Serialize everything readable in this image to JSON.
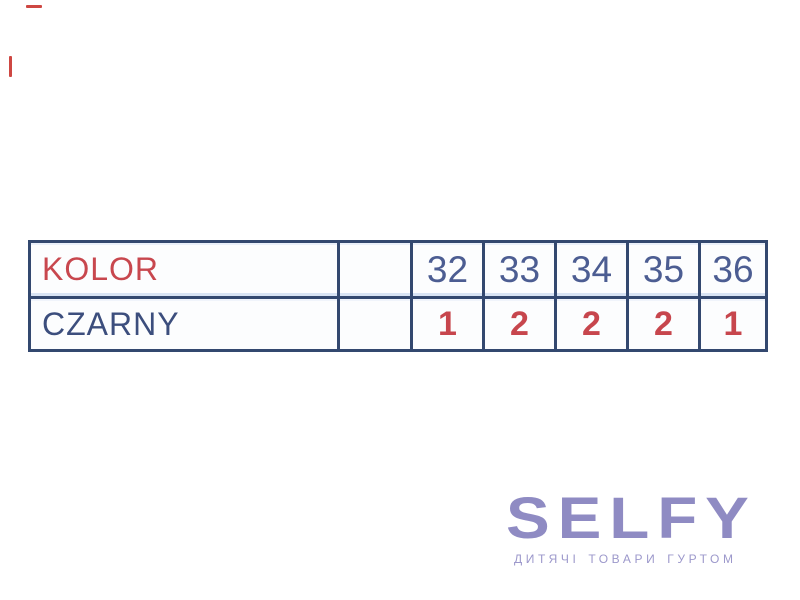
{
  "page": {
    "background_color": "#ffffff",
    "artifact_color": "#c9332e"
  },
  "table": {
    "border_color": "#33486f",
    "cell_background": "#fcfdfe",
    "header_row": {
      "label": "KOLOR",
      "label_color": "#c8474e",
      "spacer": "",
      "sizes": [
        "32",
        "33",
        "34",
        "35",
        "36"
      ],
      "size_color": "#4c5d92"
    },
    "data_row": {
      "label": "CZARNY",
      "label_color": "#3c4e7d",
      "spacer": "",
      "quantities": [
        "1",
        "2",
        "2",
        "2",
        "1"
      ],
      "quantity_color": "#c7464d"
    }
  },
  "logo": {
    "text": "SELFY",
    "text_color": "#8f8bc3",
    "tagline": "ДИТЯЧІ ТОВАРИ ГУРТОМ",
    "tagline_color": "#9c98cb"
  }
}
